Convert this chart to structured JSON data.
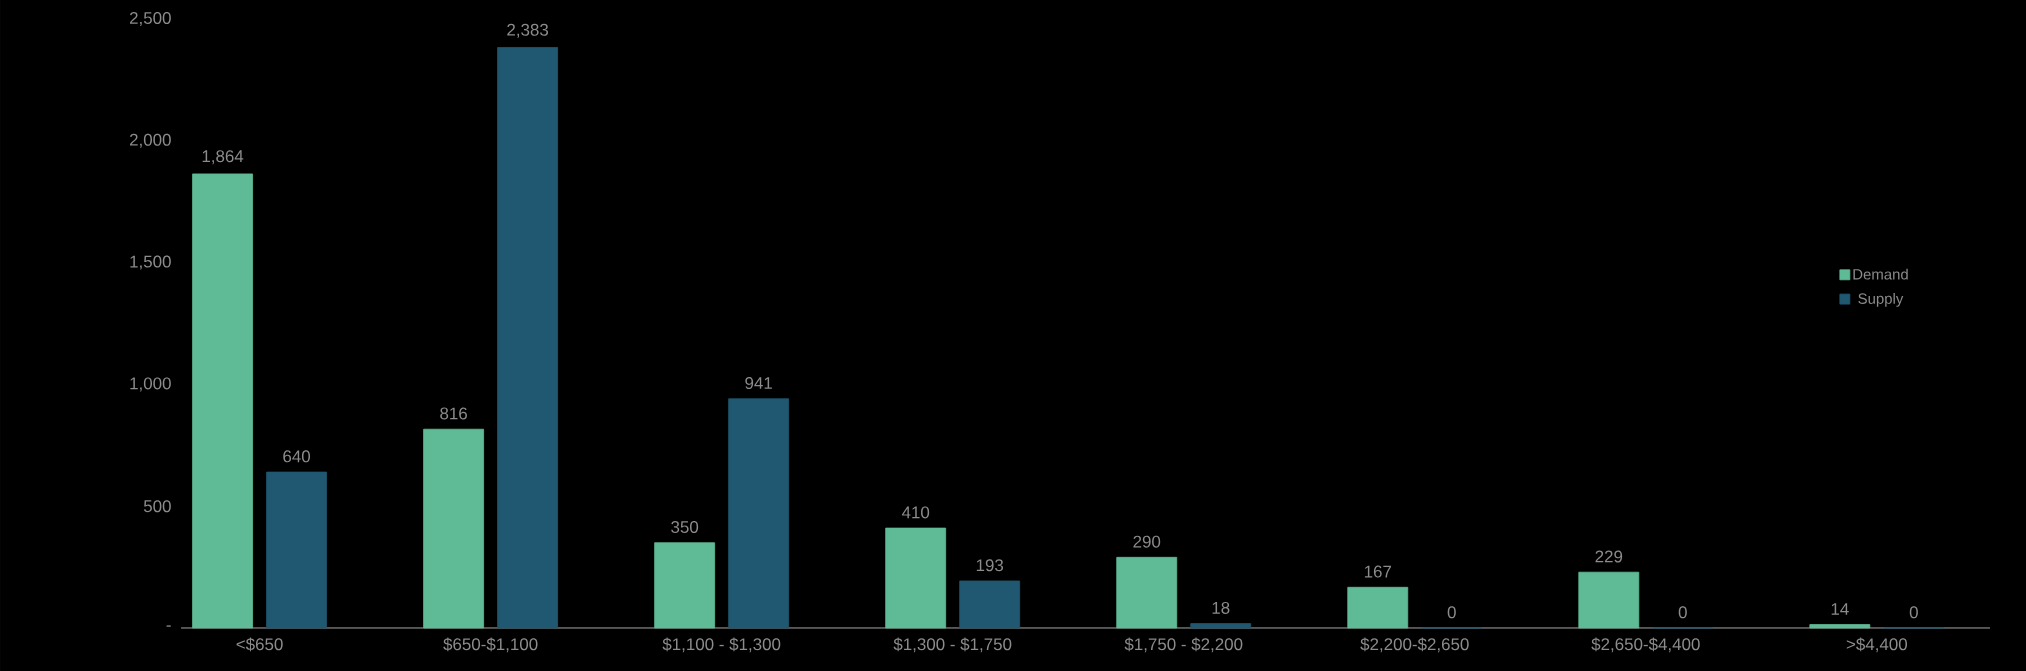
{
  "chart_data": {
    "type": "bar",
    "categories": [
      "<$650",
      "$650-$1,100",
      "$1,100 - $1,300",
      "$1,300 - $1,750",
      "$1,750 - $2,200",
      "$2,200-$2,650",
      "$2,650-$4,400",
      ">$4,400"
    ],
    "series": [
      {
        "name": "Demand",
        "color": "#5fbb96",
        "values": [
          1864,
          816,
          350,
          410,
          290,
          167,
          229,
          14
        ],
        "value_labels": [
          "1,864",
          "816",
          "350",
          "410",
          "290",
          "167",
          "229",
          "14"
        ]
      },
      {
        "name": "Supply",
        "color": "#1f5870",
        "values": [
          640,
          2383,
          941,
          193,
          18,
          0,
          0,
          0
        ],
        "value_labels": [
          "640",
          "2,383",
          "941",
          "193",
          "18",
          "0",
          "0",
          "0"
        ]
      }
    ],
    "ylim": [
      0,
      2500
    ],
    "yticks": [
      {
        "value": 0,
        "label": "-"
      },
      {
        "value": 500,
        "label": "500"
      },
      {
        "value": 1000,
        "label": "1,000"
      },
      {
        "value": 1500,
        "label": "1,500"
      },
      {
        "value": 2000,
        "label": "2,000"
      },
      {
        "value": 2500,
        "label": "2,500"
      }
    ],
    "grid": false,
    "legend": "right"
  }
}
